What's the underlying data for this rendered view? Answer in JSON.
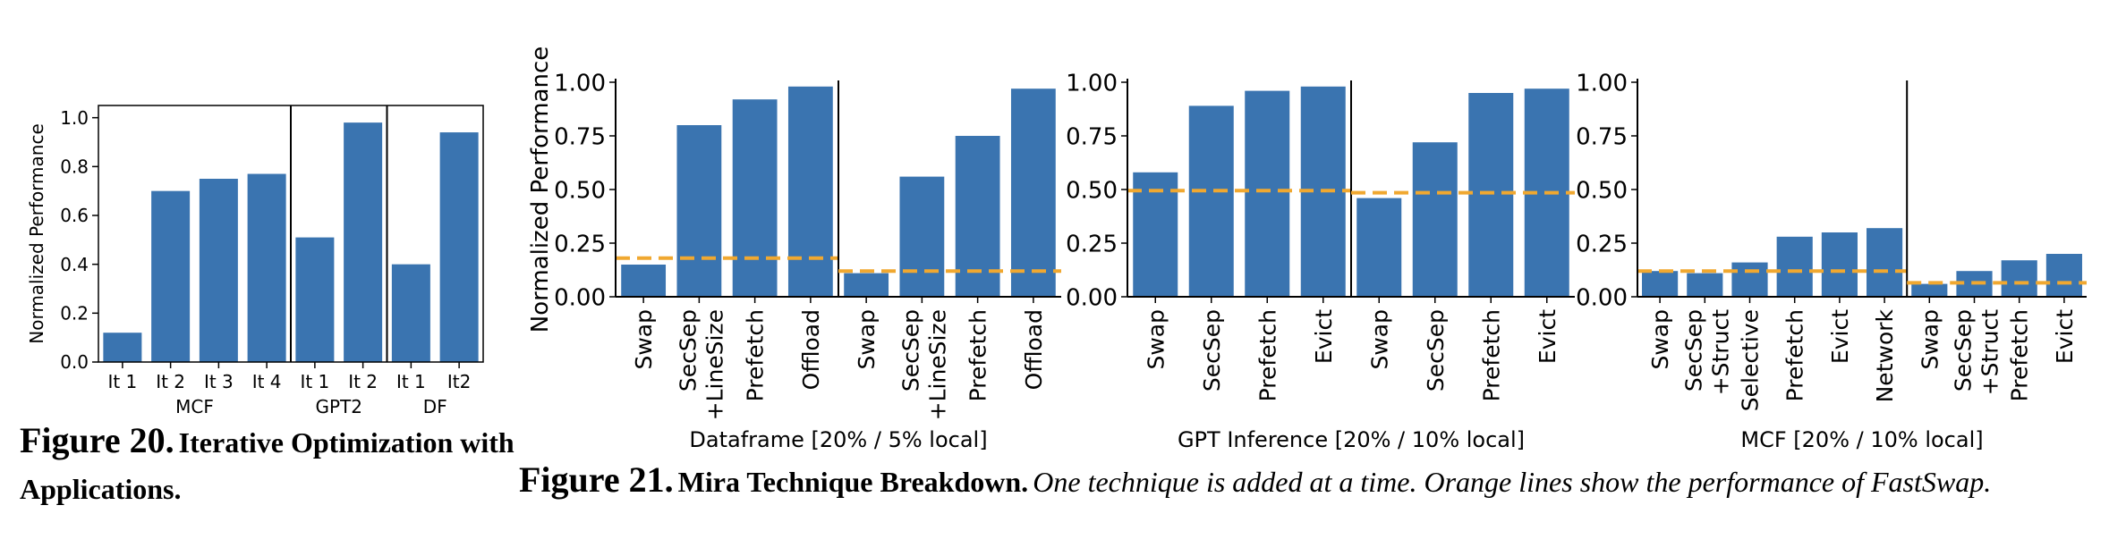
{
  "figure20": {
    "caption_number": "Figure 20.",
    "caption_title": "Iterative Optimization with Applications."
  },
  "figure21": {
    "caption_number": "Figure 21.",
    "caption_title": "Mira Technique Breakdown.",
    "caption_body": "One technique is added at a time. Orange lines show the performance of FastSwap."
  },
  "colors": {
    "bar": "#3a74b0",
    "baseline": "#f0a830"
  },
  "chart_data": [
    {
      "id": "fig20",
      "type": "bar",
      "ylabel": "Normalized Performance",
      "ylim": [
        0,
        1.05
      ],
      "yticks": [
        "0.0",
        "0.2",
        "0.4",
        "0.6",
        "0.8",
        "1.0"
      ],
      "groups": [
        {
          "name": "MCF",
          "categories": [
            "It 1",
            "It 2",
            "It 3",
            "It 4"
          ],
          "values": [
            0.12,
            0.7,
            0.75,
            0.77
          ]
        },
        {
          "name": "GPT2",
          "categories": [
            "It 1",
            "It 2"
          ],
          "values": [
            0.51,
            0.98
          ]
        },
        {
          "name": "DF",
          "categories": [
            "It 1",
            "It2"
          ],
          "values": [
            0.4,
            0.94
          ]
        }
      ]
    },
    {
      "id": "df",
      "type": "bar",
      "xlabel": "Dataframe [20% / 5% local]",
      "ylabel": "Normalized Performance",
      "ylim": [
        0,
        1.0
      ],
      "yticks": [
        "0.00",
        "0.25",
        "0.50",
        "0.75",
        "1.00"
      ],
      "groups": [
        {
          "categories": [
            "Swap",
            "SecSep\n+LineSize",
            "Prefetch",
            "Offload"
          ],
          "values": [
            0.15,
            0.8,
            0.92,
            0.98
          ],
          "baseline": 0.18
        },
        {
          "categories": [
            "Swap",
            "SecSep\n+LineSize",
            "Prefetch",
            "Offload"
          ],
          "values": [
            0.11,
            0.56,
            0.75,
            0.97
          ],
          "baseline": 0.12
        }
      ]
    },
    {
      "id": "gpt",
      "type": "bar",
      "xlabel": "GPT Inference [20% / 10% local]",
      "ylim": [
        0,
        1.0
      ],
      "yticks": [
        "0.00",
        "0.25",
        "0.50",
        "0.75",
        "1.00"
      ],
      "groups": [
        {
          "categories": [
            "Swap",
            "SecSep",
            "Prefetch",
            "Evict"
          ],
          "values": [
            0.58,
            0.89,
            0.96,
            0.98
          ],
          "baseline": 0.495
        },
        {
          "categories": [
            "Swap",
            "SecSep",
            "Prefetch",
            "Evict"
          ],
          "values": [
            0.46,
            0.72,
            0.95,
            0.97
          ],
          "baseline": 0.485
        }
      ]
    },
    {
      "id": "mcf",
      "type": "bar",
      "xlabel": "MCF [20% / 10% local]",
      "ylim": [
        0,
        1.0
      ],
      "yticks": [
        "0.00",
        "0.25",
        "0.50",
        "0.75",
        "1.00"
      ],
      "groups": [
        {
          "categories": [
            "Swap",
            "SecSep\n+Struct",
            "Selective",
            "Prefetch",
            "Evict",
            "Network"
          ],
          "values": [
            0.12,
            0.11,
            0.16,
            0.28,
            0.3,
            0.32
          ],
          "baseline": 0.12
        },
        {
          "categories": [
            "Swap",
            "SecSep\n+Struct",
            "Prefetch",
            "Evict"
          ],
          "values": [
            0.06,
            0.12,
            0.17,
            0.2
          ],
          "baseline": 0.065
        }
      ]
    }
  ]
}
